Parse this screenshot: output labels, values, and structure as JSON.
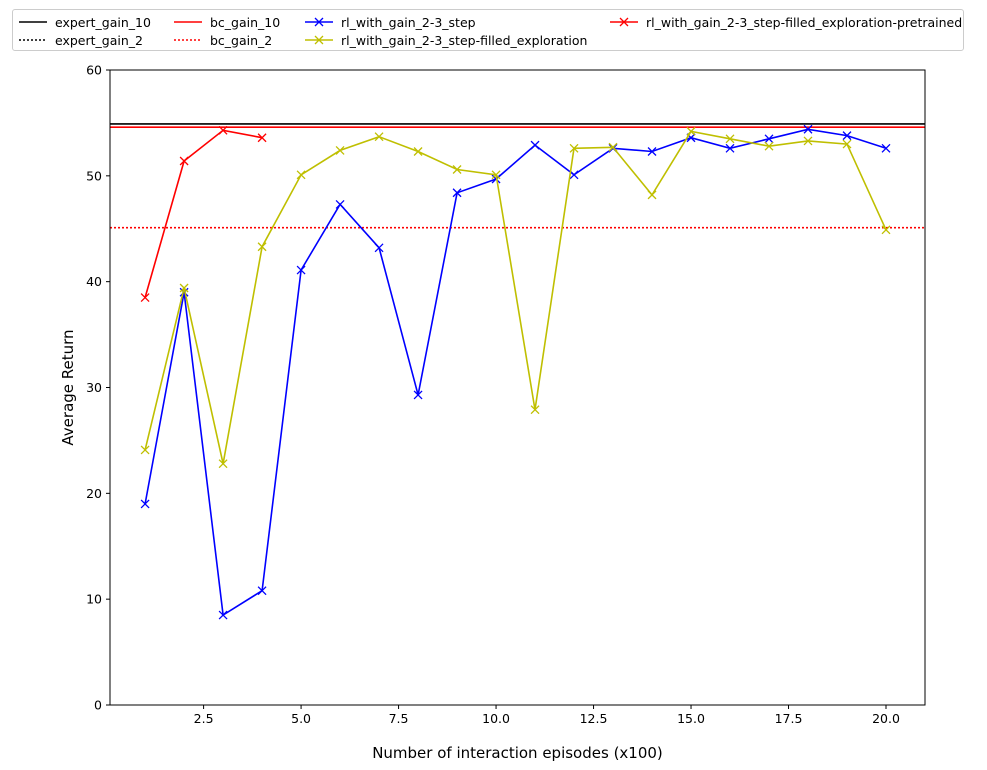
{
  "chart_data": {
    "type": "line",
    "title": "",
    "xlabel": "Number of interaction episodes (x100)",
    "ylabel": "Average Return",
    "xlim": [
      0.1,
      21
    ],
    "ylim": [
      0,
      60
    ],
    "xticks": [
      2.5,
      5.0,
      7.5,
      10.0,
      12.5,
      15.0,
      17.5,
      20.0
    ],
    "xtick_labels": [
      "2.5",
      "5.0",
      "7.5",
      "10.0",
      "12.5",
      "15.0",
      "17.5",
      "20.0"
    ],
    "yticks": [
      0,
      10,
      20,
      30,
      40,
      50,
      60
    ],
    "ytick_labels": [
      "0",
      "10",
      "20",
      "30",
      "40",
      "50",
      "60"
    ],
    "grid": false,
    "legend_position": "top, above plot",
    "hlines": [
      {
        "name": "expert_gain_10",
        "y": 54.9,
        "color": "#000000",
        "style": "solid"
      },
      {
        "name": "expert_gain_2",
        "y": 0,
        "color": "#000000",
        "style": "dotted",
        "note_visible": false
      },
      {
        "name": "bc_gain_10",
        "y": 54.6,
        "color": "#ff0000",
        "style": "solid"
      },
      {
        "name": "bc_gain_2",
        "y": 45.1,
        "color": "#ff0000",
        "style": "dotted"
      }
    ],
    "series": [
      {
        "name": "rl_with_gain_2-3_step",
        "color": "#0000ff",
        "marker": "x",
        "x": [
          1,
          2,
          3,
          4,
          5,
          6,
          7,
          8,
          9,
          10,
          11,
          12,
          13,
          14,
          15,
          16,
          17,
          18,
          19,
          20
        ],
        "y": [
          19.0,
          39.0,
          8.5,
          10.8,
          41.1,
          47.3,
          43.2,
          29.3,
          48.4,
          49.7,
          52.9,
          50.1,
          52.6,
          52.3,
          53.6,
          52.6,
          53.5,
          54.4,
          53.8,
          52.6
        ]
      },
      {
        "name": "rl_with_gain_2-3_step-filled_exploration",
        "color": "#bfbf00",
        "marker": "x",
        "x": [
          1,
          2,
          3,
          4,
          5,
          6,
          7,
          8,
          9,
          10,
          11,
          12,
          13,
          14,
          15,
          16,
          17,
          18,
          19,
          20
        ],
        "y": [
          24.1,
          39.4,
          22.8,
          43.3,
          50.1,
          52.4,
          53.7,
          52.3,
          50.6,
          50.1,
          27.9,
          52.6,
          52.7,
          48.2,
          54.2,
          53.5,
          52.8,
          53.3,
          53.0,
          44.9
        ]
      },
      {
        "name": "rl_with_gain_2-3_step-filled_exploration-pretrained",
        "color": "#ff0000",
        "marker": "x",
        "x": [
          1,
          2,
          3,
          4
        ],
        "y": [
          38.5,
          51.4,
          54.3,
          53.6
        ]
      }
    ]
  },
  "legend": [
    {
      "label": "expert_gain_10",
      "color": "#000000",
      "style": "solid",
      "marker": false
    },
    {
      "label": "expert_gain_2",
      "color": "#000000",
      "style": "dotted",
      "marker": false
    },
    {
      "label": "bc_gain_10",
      "color": "#ff0000",
      "style": "solid",
      "marker": false
    },
    {
      "label": "bc_gain_2",
      "color": "#ff0000",
      "style": "dotted",
      "marker": false
    },
    {
      "label": "rl_with_gain_2-3_step",
      "color": "#0000ff",
      "style": "solid",
      "marker": true
    },
    {
      "label": "rl_with_gain_2-3_step-filled_exploration",
      "color": "#bfbf00",
      "style": "solid",
      "marker": true
    },
    {
      "label": "rl_with_gain_2-3_step-filled_exploration-pretrained",
      "color": "#ff0000",
      "style": "solid",
      "marker": true
    }
  ]
}
